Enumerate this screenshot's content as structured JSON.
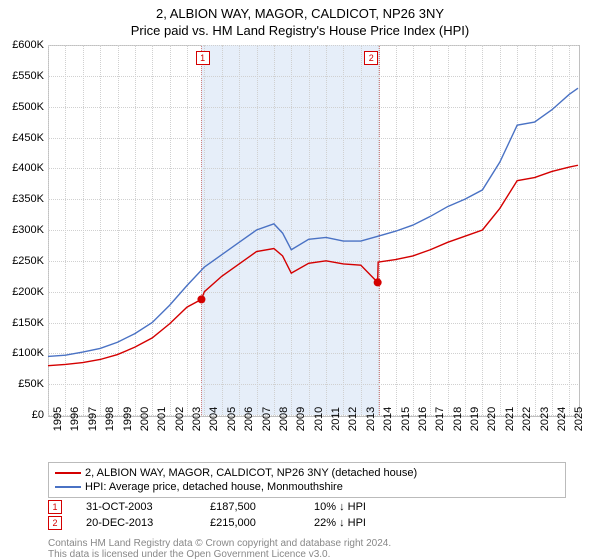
{
  "title": "2, ALBION WAY, MAGOR, CALDICOT, NP26 3NY",
  "subtitle": "Price paid vs. HM Land Registry's House Price Index (HPI)",
  "chart": {
    "type": "line",
    "background_color": "#ffffff",
    "grid_color": "#d0d0d0",
    "border_color": "#c0c0c0",
    "shaded_color": "#e6eef9",
    "x": {
      "min": 1995,
      "max": 2025.5,
      "ticks": [
        1995,
        1996,
        1997,
        1998,
        1999,
        2000,
        2001,
        2002,
        2003,
        2004,
        2005,
        2006,
        2007,
        2008,
        2009,
        2010,
        2011,
        2012,
        2013,
        2014,
        2015,
        2016,
        2017,
        2018,
        2019,
        2020,
        2021,
        2022,
        2023,
        2024,
        2025
      ]
    },
    "y": {
      "min": 0,
      "max": 600000,
      "ticks": [
        0,
        50000,
        100000,
        150000,
        200000,
        250000,
        300000,
        350000,
        400000,
        450000,
        500000,
        550000,
        600000
      ],
      "tick_labels": [
        "£0",
        "£50K",
        "£100K",
        "£150K",
        "£200K",
        "£250K",
        "£300K",
        "£350K",
        "£400K",
        "£450K",
        "£500K",
        "£550K",
        "£600K"
      ]
    },
    "shaded_region": {
      "x_start": 2003.83,
      "x_end": 2013.97
    },
    "label_fontsize": 11,
    "series": [
      {
        "name": "price_paid",
        "label": "2, ALBION WAY, MAGOR, CALDICOT, NP26 3NY (detached house)",
        "color": "#d40000",
        "line_width": 1.4,
        "marker_color": "#d40000",
        "x": [
          1995,
          1996,
          1997,
          1998,
          1999,
          2000,
          2001,
          2002,
          2003,
          2003.83,
          2004,
          2005,
          2006,
          2007,
          2008,
          2008.5,
          2009,
          2010,
          2011,
          2012,
          2013,
          2013.97,
          2014,
          2015,
          2016,
          2017,
          2018,
          2019,
          2020,
          2021,
          2022,
          2023,
          2024,
          2025,
          2025.5
        ],
        "y": [
          80000,
          82000,
          85000,
          90000,
          98000,
          110000,
          125000,
          148000,
          175000,
          187500,
          200000,
          225000,
          245000,
          265000,
          270000,
          258000,
          230000,
          246000,
          250000,
          245000,
          243000,
          215000,
          248000,
          252000,
          258000,
          268000,
          280000,
          290000,
          300000,
          335000,
          380000,
          385000,
          395000,
          402000,
          405000
        ]
      },
      {
        "name": "hpi",
        "label": "HPI: Average price, detached house, Monmouthshire",
        "color": "#4a72c4",
        "line_width": 1.4,
        "x": [
          1995,
          1996,
          1997,
          1998,
          1999,
          2000,
          2001,
          2002,
          2003,
          2004,
          2005,
          2006,
          2007,
          2008,
          2008.5,
          2009,
          2010,
          2011,
          2012,
          2013,
          2014,
          2015,
          2016,
          2017,
          2018,
          2019,
          2020,
          2021,
          2022,
          2023,
          2024,
          2025,
          2025.5
        ],
        "y": [
          95000,
          97000,
          102000,
          108000,
          118000,
          132000,
          150000,
          178000,
          210000,
          240000,
          260000,
          280000,
          300000,
          310000,
          295000,
          268000,
          285000,
          288000,
          282000,
          282000,
          290000,
          298000,
          308000,
          322000,
          338000,
          350000,
          365000,
          410000,
          470000,
          475000,
          495000,
          520000,
          530000
        ]
      }
    ],
    "markers": [
      {
        "n": "1",
        "x": 2003.83,
        "y": 187500,
        "color": "#d40000"
      },
      {
        "n": "2",
        "x": 2013.97,
        "y": 215000,
        "color": "#d40000"
      }
    ],
    "marker_labels": [
      {
        "n": "1",
        "x": 2003.9,
        "color": "#d40000"
      },
      {
        "n": "2",
        "x": 2013.6,
        "color": "#d40000"
      }
    ]
  },
  "legend": {
    "items": [
      {
        "color": "#d40000",
        "label": "2, ALBION WAY, MAGOR, CALDICOT, NP26 3NY (detached house)"
      },
      {
        "color": "#4a72c4",
        "label": "HPI: Average price, detached house, Monmouthshire"
      }
    ]
  },
  "transactions": [
    {
      "n": "1",
      "date": "31-OCT-2003",
      "price": "£187,500",
      "pct": "10% ↓ HPI",
      "color": "#d40000"
    },
    {
      "n": "2",
      "date": "20-DEC-2013",
      "price": "£215,000",
      "pct": "22% ↓ HPI",
      "color": "#d40000"
    }
  ],
  "footer": {
    "line1": "Contains HM Land Registry data © Crown copyright and database right 2024.",
    "line2": "This data is licensed under the Open Government Licence v3.0."
  }
}
